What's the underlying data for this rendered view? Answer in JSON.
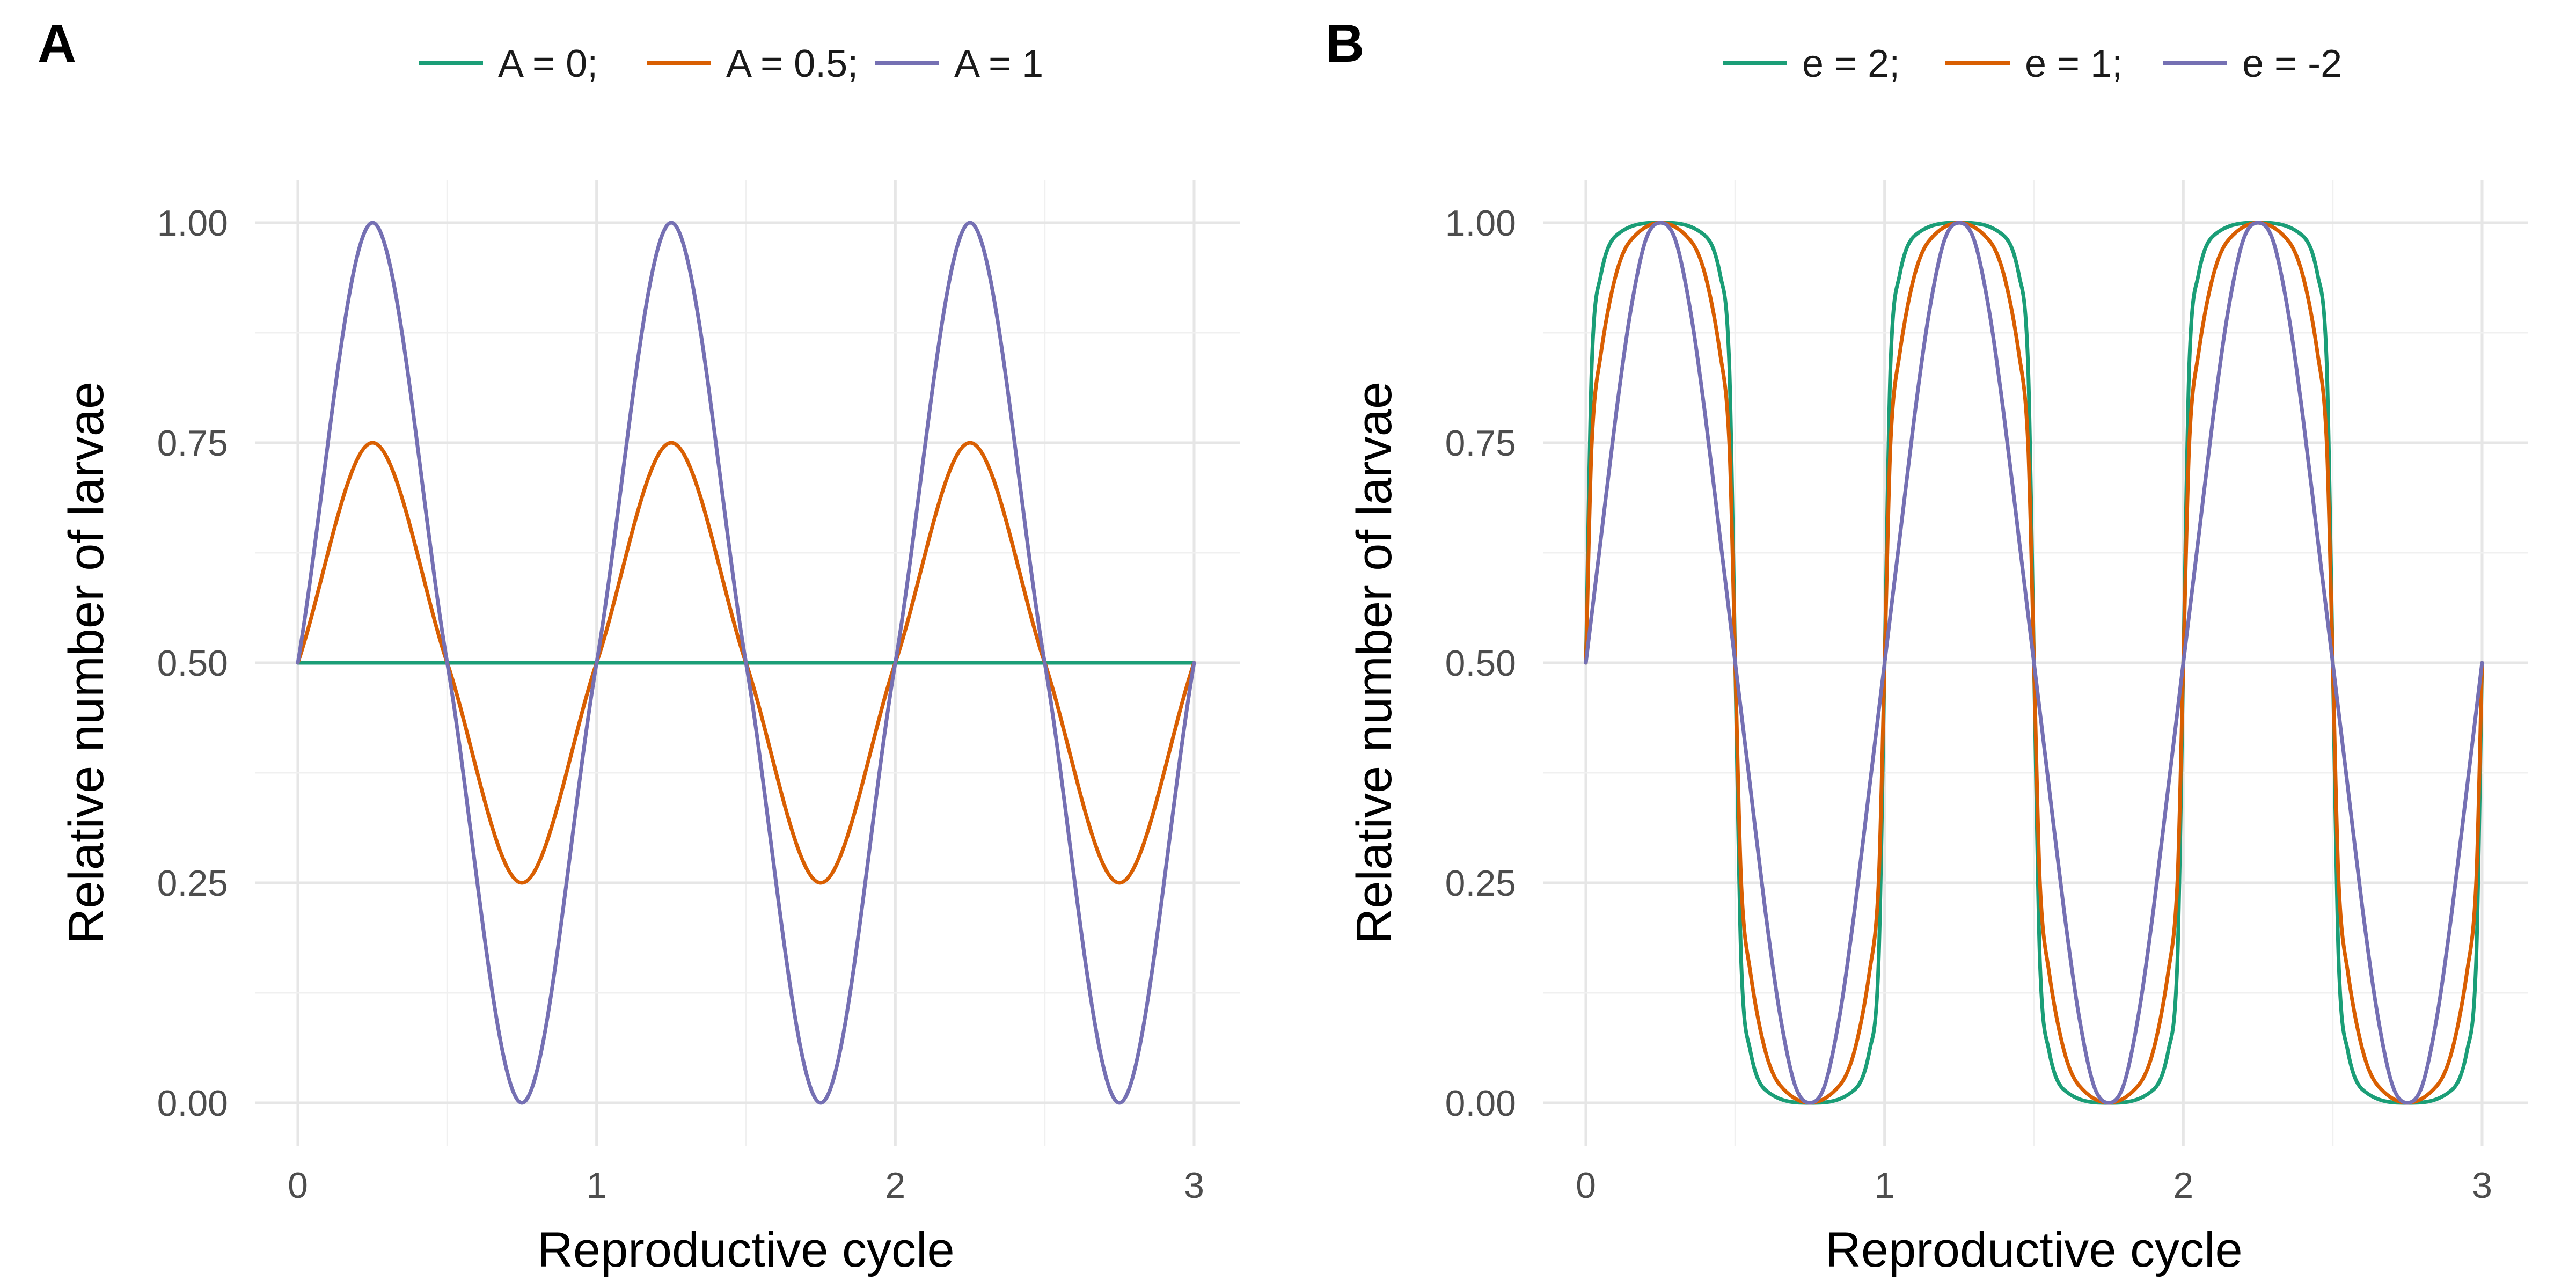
{
  "chart_data": [
    {
      "type": "line",
      "panel_label": "A",
      "xlabel": "Reproductive cycle",
      "ylabel": "Relative number of larvae",
      "xlim": [
        0,
        3
      ],
      "ylim": [
        0,
        1
      ],
      "x_ticks": [
        "0",
        "1",
        "2",
        "3"
      ],
      "y_ticks": [
        "0.00",
        "0.25",
        "0.50",
        "0.75",
        "1.00"
      ],
      "grid": true,
      "legend_position": "top",
      "series": [
        {
          "name": "A = 0;",
          "legend_label": "A = 0;",
          "color": "#1b9e77",
          "x": [
            0,
            3
          ],
          "values": [
            0.5,
            0.5
          ],
          "peaks": [],
          "troughs": []
        },
        {
          "name": "A = 0.5;",
          "legend_label": "A = 0.5;",
          "color": "#d95f02",
          "x": [
            0,
            0.25,
            0.5,
            0.75,
            1,
            1.25,
            1.5,
            1.75,
            2,
            2.25,
            2.5,
            2.75,
            3
          ],
          "values": [
            0.5,
            0.75,
            0.5,
            0.25,
            0.5,
            0.75,
            0.5,
            0.25,
            0.5,
            0.75,
            0.5,
            0.25,
            0.5
          ],
          "peaks": [
            0.75,
            0.75,
            0.75
          ],
          "troughs": [
            0.25,
            0.25,
            0.25
          ]
        },
        {
          "name": "A = 1",
          "legend_label": "A = 1",
          "color": "#7570b3",
          "x": [
            0,
            0.25,
            0.5,
            0.75,
            1,
            1.25,
            1.5,
            1.75,
            2,
            2.25,
            2.5,
            2.75,
            3
          ],
          "values": [
            0.5,
            1.0,
            0.5,
            0.0,
            0.5,
            1.0,
            0.5,
            0.0,
            0.5,
            1.0,
            0.5,
            0.0,
            0.5
          ],
          "peaks": [
            1.0,
            1.0,
            1.0
          ],
          "troughs": [
            0.0,
            0.0,
            0.0
          ]
        }
      ]
    },
    {
      "type": "line",
      "panel_label": "B",
      "xlabel": "Reproductive cycle",
      "ylabel": "Relative number of larvae",
      "xlim": [
        0,
        3
      ],
      "ylim": [
        0,
        1
      ],
      "x_ticks": [
        "0",
        "1",
        "2",
        "3"
      ],
      "y_ticks": [
        "0.00",
        "0.25",
        "0.50",
        "0.75",
        "1.00"
      ],
      "grid": true,
      "legend_position": "top",
      "series": [
        {
          "name": "e = 2;",
          "legend_label": "e = 2;",
          "color": "#1b9e77",
          "x": [
            0,
            0.02,
            0.05,
            0.1,
            0.25,
            0.4,
            0.45,
            0.48,
            0.5,
            0.52,
            0.55,
            0.6,
            0.75,
            0.9,
            0.95,
            0.98,
            1,
            1.02,
            1.05,
            1.1,
            1.25,
            1.4,
            1.45,
            1.48,
            1.5,
            1.52,
            1.55,
            1.6,
            1.75,
            1.9,
            1.95,
            1.98,
            2,
            2.02,
            2.05,
            2.1,
            2.25,
            2.4,
            2.45,
            2.48,
            2.5,
            2.52,
            2.55,
            2.6,
            2.75,
            2.9,
            2.95,
            2.98,
            3
          ],
          "values": [
            0.5,
            0.84,
            0.94,
            0.985,
            1.0,
            0.985,
            0.94,
            0.84,
            0.5,
            0.16,
            0.06,
            0.015,
            0.0,
            0.015,
            0.06,
            0.16,
            0.5,
            0.84,
            0.94,
            0.985,
            1.0,
            0.985,
            0.94,
            0.84,
            0.5,
            0.16,
            0.06,
            0.015,
            0.0,
            0.015,
            0.06,
            0.16,
            0.5,
            0.84,
            0.94,
            0.985,
            1.0,
            0.985,
            0.94,
            0.84,
            0.5,
            0.16,
            0.06,
            0.015,
            0.0,
            0.015,
            0.06,
            0.16,
            0.5
          ],
          "peaks": [
            1.0,
            1.0,
            1.0
          ],
          "troughs": [
            0.0,
            0.0,
            0.0
          ]
        },
        {
          "name": "e = 1;",
          "legend_label": "e = 1;",
          "color": "#d95f02",
          "x": [
            0,
            0.02,
            0.05,
            0.1,
            0.15,
            0.25,
            0.35,
            0.4,
            0.45,
            0.48,
            0.5,
            0.52,
            0.55,
            0.6,
            0.65,
            0.75,
            0.85,
            0.9,
            0.95,
            0.98,
            1,
            1.02,
            1.05,
            1.1,
            1.15,
            1.25,
            1.35,
            1.4,
            1.45,
            1.48,
            1.5,
            1.52,
            1.55,
            1.6,
            1.65,
            1.75,
            1.85,
            1.9,
            1.95,
            1.98,
            2,
            2.02,
            2.05,
            2.1,
            2.15,
            2.25,
            2.35,
            2.4,
            2.45,
            2.48,
            2.5,
            2.52,
            2.55,
            2.6,
            2.65,
            2.75,
            2.85,
            2.9,
            2.95,
            2.98,
            3
          ],
          "values": [
            0.5,
            0.75,
            0.85,
            0.94,
            0.98,
            1.0,
            0.98,
            0.94,
            0.85,
            0.75,
            0.5,
            0.25,
            0.15,
            0.06,
            0.02,
            0.0,
            0.02,
            0.06,
            0.15,
            0.25,
            0.5,
            0.75,
            0.85,
            0.94,
            0.98,
            1.0,
            0.98,
            0.94,
            0.85,
            0.75,
            0.5,
            0.25,
            0.15,
            0.06,
            0.02,
            0.0,
            0.02,
            0.06,
            0.15,
            0.25,
            0.5,
            0.75,
            0.85,
            0.94,
            0.98,
            1.0,
            0.98,
            0.94,
            0.85,
            0.75,
            0.5,
            0.25,
            0.15,
            0.06,
            0.02,
            0.0,
            0.02,
            0.06,
            0.15,
            0.25,
            0.5
          ],
          "peaks": [
            1.0,
            1.0,
            1.0
          ],
          "troughs": [
            0.0,
            0.0,
            0.0
          ]
        },
        {
          "name": "e = -2",
          "legend_label": "e = -2",
          "color": "#7570b3",
          "x": [
            0,
            0.05,
            0.1,
            0.15,
            0.2,
            0.25,
            0.3,
            0.35,
            0.4,
            0.45,
            0.5,
            0.55,
            0.6,
            0.65,
            0.7,
            0.75,
            0.8,
            0.85,
            0.9,
            0.95,
            1,
            1.05,
            1.1,
            1.15,
            1.2,
            1.25,
            1.3,
            1.35,
            1.4,
            1.45,
            1.5,
            1.55,
            1.6,
            1.65,
            1.7,
            1.75,
            1.8,
            1.85,
            1.9,
            1.95,
            2,
            2.05,
            2.1,
            2.15,
            2.2,
            2.25,
            2.3,
            2.35,
            2.4,
            2.45,
            2.5,
            2.55,
            2.6,
            2.65,
            2.7,
            2.75,
            2.8,
            2.85,
            2.9,
            2.95,
            3
          ],
          "values": [
            0.5,
            0.64,
            0.78,
            0.9,
            0.98,
            1.0,
            0.98,
            0.9,
            0.78,
            0.64,
            0.5,
            0.36,
            0.22,
            0.1,
            0.02,
            0.0,
            0.02,
            0.1,
            0.22,
            0.36,
            0.5,
            0.64,
            0.78,
            0.9,
            0.98,
            1.0,
            0.98,
            0.9,
            0.78,
            0.64,
            0.5,
            0.36,
            0.22,
            0.1,
            0.02,
            0.0,
            0.02,
            0.1,
            0.22,
            0.36,
            0.5,
            0.64,
            0.78,
            0.9,
            0.98,
            1.0,
            0.98,
            0.9,
            0.78,
            0.64,
            0.5,
            0.36,
            0.22,
            0.1,
            0.02,
            0.0,
            0.02,
            0.1,
            0.22,
            0.36,
            0.5
          ],
          "peaks": [
            1.0,
            1.0,
            1.0
          ],
          "troughs": [
            0.0,
            0.0,
            0.0
          ]
        }
      ]
    }
  ]
}
